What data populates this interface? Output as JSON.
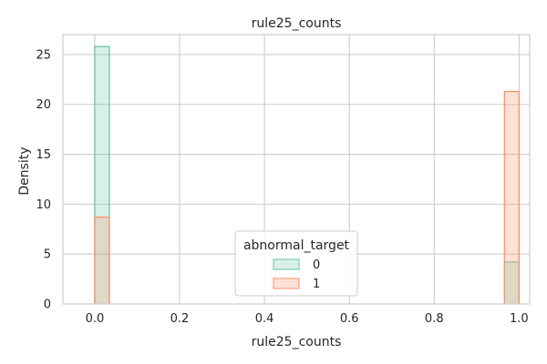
{
  "chart_data": {
    "type": "histogram",
    "title": "rule25_counts",
    "xlabel": "rule25_counts",
    "ylabel": "Density",
    "xlim": [
      -0.075,
      1.025
    ],
    "ylim": [
      0,
      27
    ],
    "xticks": [
      0.0,
      0.2,
      0.4,
      0.6,
      0.8,
      1.0
    ],
    "xtick_labels": [
      "0.0",
      "0.2",
      "0.4",
      "0.6",
      "0.8",
      "1.0"
    ],
    "yticks": [
      0,
      5,
      10,
      15,
      20,
      25
    ],
    "ytick_labels": [
      "0",
      "5",
      "10",
      "15",
      "20",
      "25"
    ],
    "grid": true,
    "legend": {
      "title": "abnormal_target",
      "placement": "lower-center",
      "entries": [
        "0",
        "1"
      ]
    },
    "series": [
      {
        "name": "0",
        "color": "#66c2a5",
        "fill": "rgba(102,194,165,0.25)",
        "bins": [
          {
            "x0": 0.0,
            "x1": 0.0345,
            "density": 25.8
          },
          {
            "x0": 0.9655,
            "x1": 1.0,
            "density": 4.2
          }
        ]
      },
      {
        "name": "1",
        "color": "#fc8d62",
        "fill": "rgba(252,141,98,0.25)",
        "bins": [
          {
            "x0": 0.0,
            "x1": 0.0345,
            "density": 8.7
          },
          {
            "x0": 0.9655,
            "x1": 1.0,
            "density": 21.3
          }
        ]
      }
    ]
  }
}
